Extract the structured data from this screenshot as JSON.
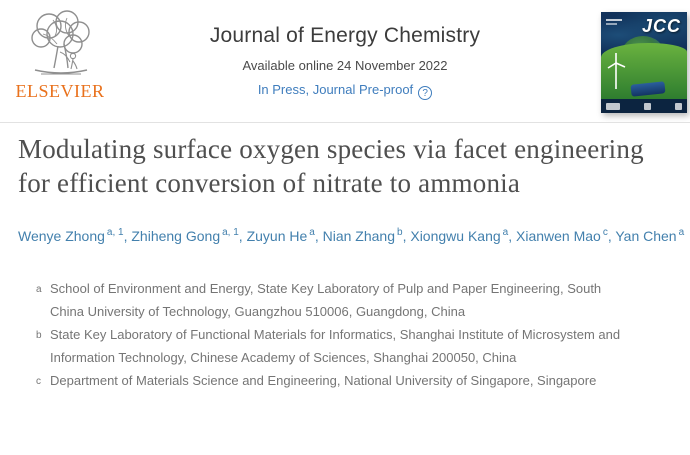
{
  "header": {
    "publisher": "ELSEVIER",
    "journal_title": "Journal of Energy Chemistry",
    "available_online": "Available online 24 November 2022",
    "in_press_label": "In Press, Journal Pre-proof",
    "help_icon": "help-icon"
  },
  "cover": {
    "label": "JCC"
  },
  "article": {
    "title": "Modulating surface oxygen species via facet engineering for efficient conversion of nitrate to ammonia"
  },
  "authors": [
    {
      "name": "Wenye Zhong",
      "sup": "a, 1"
    },
    {
      "name": "Zhiheng Gong",
      "sup": "a, 1"
    },
    {
      "name": "Zuyun He",
      "sup": "a"
    },
    {
      "name": "Nian Zhang",
      "sup": "b"
    },
    {
      "name": "Xiongwu Kang",
      "sup": "a"
    },
    {
      "name": "Xianwen Mao",
      "sup": "c"
    },
    {
      "name": "Yan Chen",
      "sup": "a",
      "icons": [
        "person-icon",
        "envelope-icon"
      ]
    }
  ],
  "affiliations": [
    {
      "label": "a",
      "text": "School of Environment and Energy, State Key Laboratory of Pulp and Paper Engineering, South China University of Technology, Guangzhou 510006, Guangdong, China"
    },
    {
      "label": "b",
      "text": "State Key Laboratory of Functional Materials for Informatics, Shanghai Institute of Microsystem and Information Technology, Chinese Academy of Sciences, Shanghai 200050, China"
    },
    {
      "label": "c",
      "text": "Department of Materials Science and Engineering, National University of Singapore, Singapore"
    }
  ],
  "colors": {
    "accent_orange": "#e9711c",
    "link_blue": "#3f7dbd",
    "author_blue": "#4380ad",
    "title_gray": "#4f4f4f",
    "affil_gray": "#757575"
  }
}
